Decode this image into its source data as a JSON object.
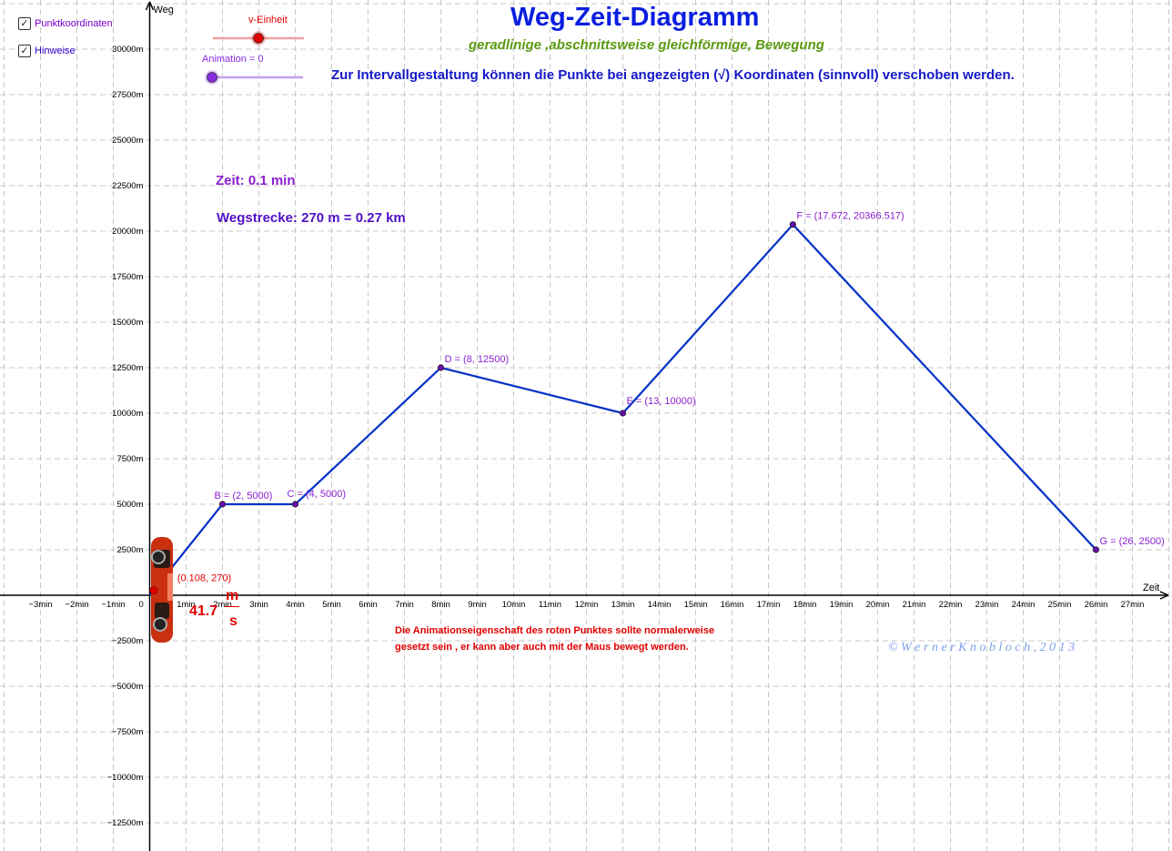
{
  "controls": {
    "checkboxes": [
      {
        "label": "Punktkoordinaten",
        "checked": true,
        "color": "#7a00d0"
      },
      {
        "label": "Hinweise",
        "checked": true,
        "color": "#2d00c8"
      }
    ],
    "sliders": [
      {
        "label": "v-Einheit",
        "value": 0.5,
        "color": "#e00000",
        "track": "#f0a0a0"
      },
      {
        "label": "Animation = 0",
        "value": 0,
        "color": "#8a2be2",
        "track": "#c8a0f0"
      }
    ]
  },
  "header": {
    "title": "Weg-Zeit-Diagramm",
    "subtitle": "geradlinige ,abschnittsweise gleichförmige, Bewegung",
    "hint": "Zur Intervallgestaltung  können  die Punkte bei angezeigten (√) Koordinaten (sinnvoll) verschoben werden."
  },
  "info": {
    "time": "Zeit: 0.1 min",
    "distance": "Wegstrecke: 270 m = 0.27 km"
  },
  "notes": {
    "line1": "Die  Animationseigenschaft des roten Punktes  sollte normalerweise",
    "line2": "gesetzt sein , er kann aber auch mit der Maus bewegt werden."
  },
  "copyright": "© W e r n e r K n o b l o c h , 2 0 1 3",
  "speed": {
    "value": "41.7",
    "unit_num": "m",
    "unit_den": "s"
  },
  "chart_data": {
    "type": "line",
    "xlabel": "Zeit",
    "ylabel": "Weg",
    "xlim": [
      -4,
      28
    ],
    "ylim": [
      -14000,
      32500
    ],
    "grid": true,
    "x_ticks": [
      "−3min",
      "−2min",
      "−1min",
      "0",
      "1min",
      "2min",
      "3min",
      "4min",
      "5min",
      "6min",
      "7min",
      "8min",
      "9min",
      "10min",
      "11min",
      "12min",
      "13min",
      "14min",
      "15min",
      "16min",
      "17min",
      "18min",
      "19min",
      "20min",
      "21min",
      "22min",
      "23min",
      "24min",
      "25min",
      "26min",
      "27min"
    ],
    "y_ticks": [
      "30000m",
      "27500m",
      "25000m",
      "22500m",
      "20000m",
      "17500m",
      "15000m",
      "12500m",
      "10000m",
      "7500m",
      "5000m",
      "2500m",
      "−2500m",
      "−5000m",
      "−7500m",
      "−10000m",
      "−12500m"
    ],
    "series": [
      {
        "color": "#0030c8",
        "points": [
          {
            "x": 0,
            "y": 0
          },
          {
            "x": 2,
            "y": 5000,
            "label": "B = (2, 5000)"
          },
          {
            "x": 4,
            "y": 5000,
            "label": "C = (4, 5000)"
          },
          {
            "x": 8,
            "y": 12500,
            "label": "D = (8, 12500)"
          },
          {
            "x": 13,
            "y": 10000,
            "label": "E = (13, 10000)"
          },
          {
            "x": 17.672,
            "y": 20366.517,
            "label": "F = (17.672, 20366.517)"
          },
          {
            "x": 26,
            "y": 2500,
            "label": "G = (26, 2500)"
          }
        ]
      }
    ],
    "moving_point": {
      "x": 0.108,
      "y": 270,
      "label": "(0.108, 270)",
      "color": "#e00000"
    }
  }
}
